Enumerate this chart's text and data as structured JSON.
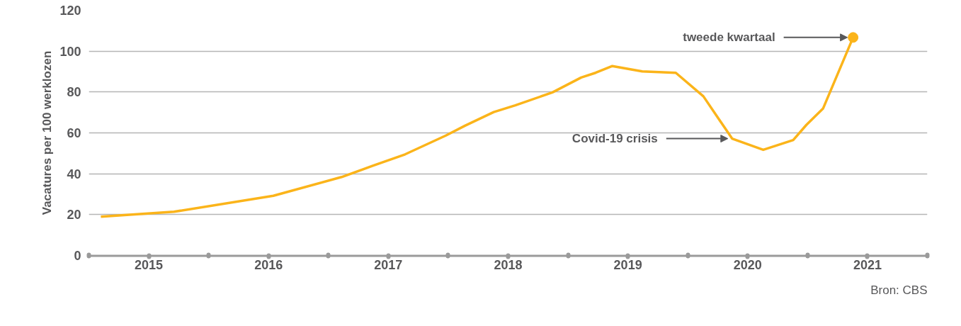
{
  "chart_data": {
    "type": "line",
    "ylabel": "Vacatures per 100 werklozen",
    "xlim": [
      2015,
      2022
    ],
    "ylim": [
      0,
      120
    ],
    "yticks": [
      0,
      20,
      40,
      60,
      80,
      100,
      120
    ],
    "xticks": [
      {
        "value": 2015,
        "label": null
      },
      {
        "value": 2015.5,
        "label": "2015"
      },
      {
        "value": 2016,
        "label": null
      },
      {
        "value": 2016.5,
        "label": "2016"
      },
      {
        "value": 2017,
        "label": null
      },
      {
        "value": 2017.5,
        "label": "2017"
      },
      {
        "value": 2018,
        "label": null
      },
      {
        "value": 2018.5,
        "label": "2018"
      },
      {
        "value": 2019,
        "label": null
      },
      {
        "value": 2019.5,
        "label": "2019"
      },
      {
        "value": 2020,
        "label": null
      },
      {
        "value": 2020.5,
        "label": "2020"
      },
      {
        "value": 2021,
        "label": null
      },
      {
        "value": 2021.5,
        "label": "2021"
      },
      {
        "value": 2022,
        "label": null
      }
    ],
    "grid": "y",
    "series": [
      {
        "color": "#fbb41a",
        "x": [
          2015.1,
          2015.71,
          2016.54,
          2017.11,
          2017.37,
          2017.64,
          2017.98,
          2018.14,
          2018.38,
          2018.56,
          2018.87,
          2019.11,
          2019.23,
          2019.37,
          2019.62,
          2019.9,
          2020.13,
          2020.37,
          2020.63,
          2020.88,
          2020.99,
          2021.13,
          2021.38
        ],
        "values": [
          19,
          21.4,
          29.2,
          38.4,
          43.9,
          49.5,
          58.7,
          63.5,
          70.2,
          73.5,
          79.8,
          87.1,
          89.4,
          92.7,
          90.1,
          89.4,
          77.9,
          57.2,
          51.7,
          56.5,
          63.9,
          72,
          106.7
        ]
      },
      {
        "type": "scatter",
        "color": "#fbb41a",
        "marker": "circle",
        "x": [
          2021.38
        ],
        "values": [
          106.7
        ]
      }
    ],
    "annotations": [
      {
        "text": "tweede kwartaal",
        "x": 2021.38,
        "y": 106.7
      },
      {
        "text": "Covid-19 crisis",
        "x": 2020.37,
        "y": 57.2
      },
      "Bron: CBS"
    ]
  }
}
